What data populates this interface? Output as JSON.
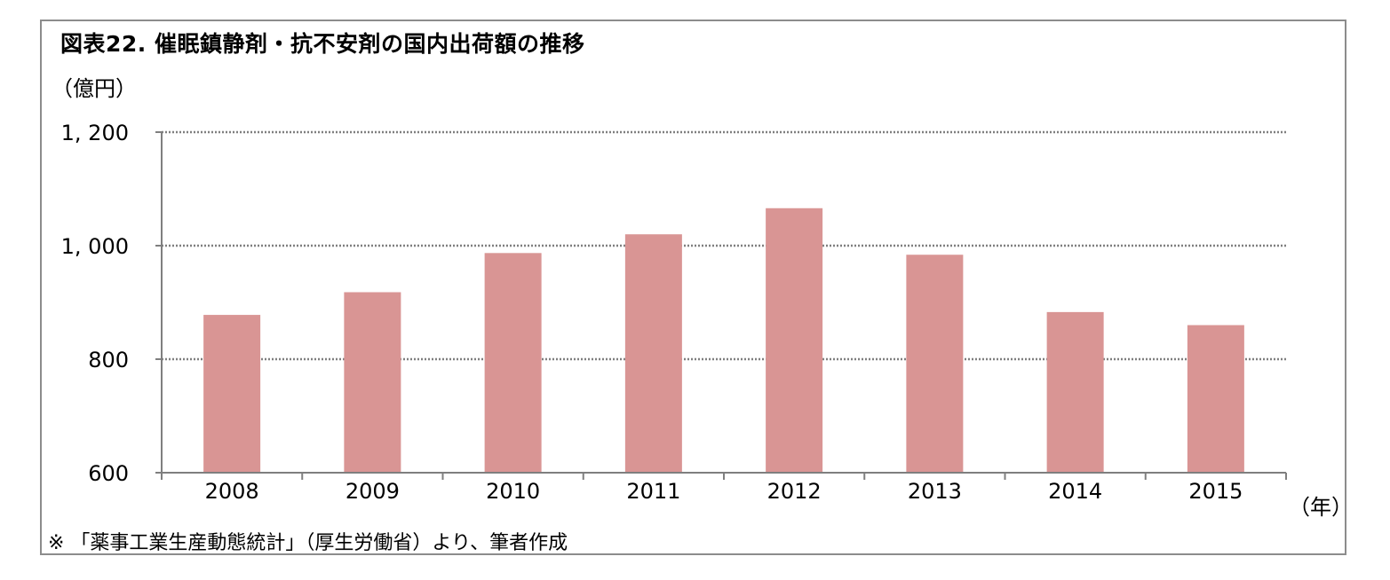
{
  "figure": {
    "title": "図表22.  催眠鎮静剤・抗不安剤の国内出荷額の推移",
    "y_unit_label": "（億円）",
    "x_unit_label": "（年）",
    "source_note": "※  「薬事工業生産動態統計」（厚生労働省）より、筆者作成"
  },
  "chart_data": {
    "type": "bar",
    "title": "図表22.  催眠鎮静剤・抗不安剤の国内出荷額の推移",
    "xlabel": "（年）",
    "ylabel": "（億円）",
    "categories": [
      "2008",
      "2009",
      "2010",
      "2011",
      "2012",
      "2013",
      "2014",
      "2015"
    ],
    "values": [
      878,
      918,
      987,
      1020,
      1066,
      984,
      883,
      860
    ],
    "ylim": [
      600,
      1200
    ],
    "yticks": [
      600,
      800,
      1000,
      1200
    ],
    "ytick_labels": [
      "600",
      "800",
      "1, 000",
      "1, 200"
    ],
    "grid": true,
    "grid_style": "dotted",
    "bar_color": "#d99594",
    "legend": "none"
  }
}
